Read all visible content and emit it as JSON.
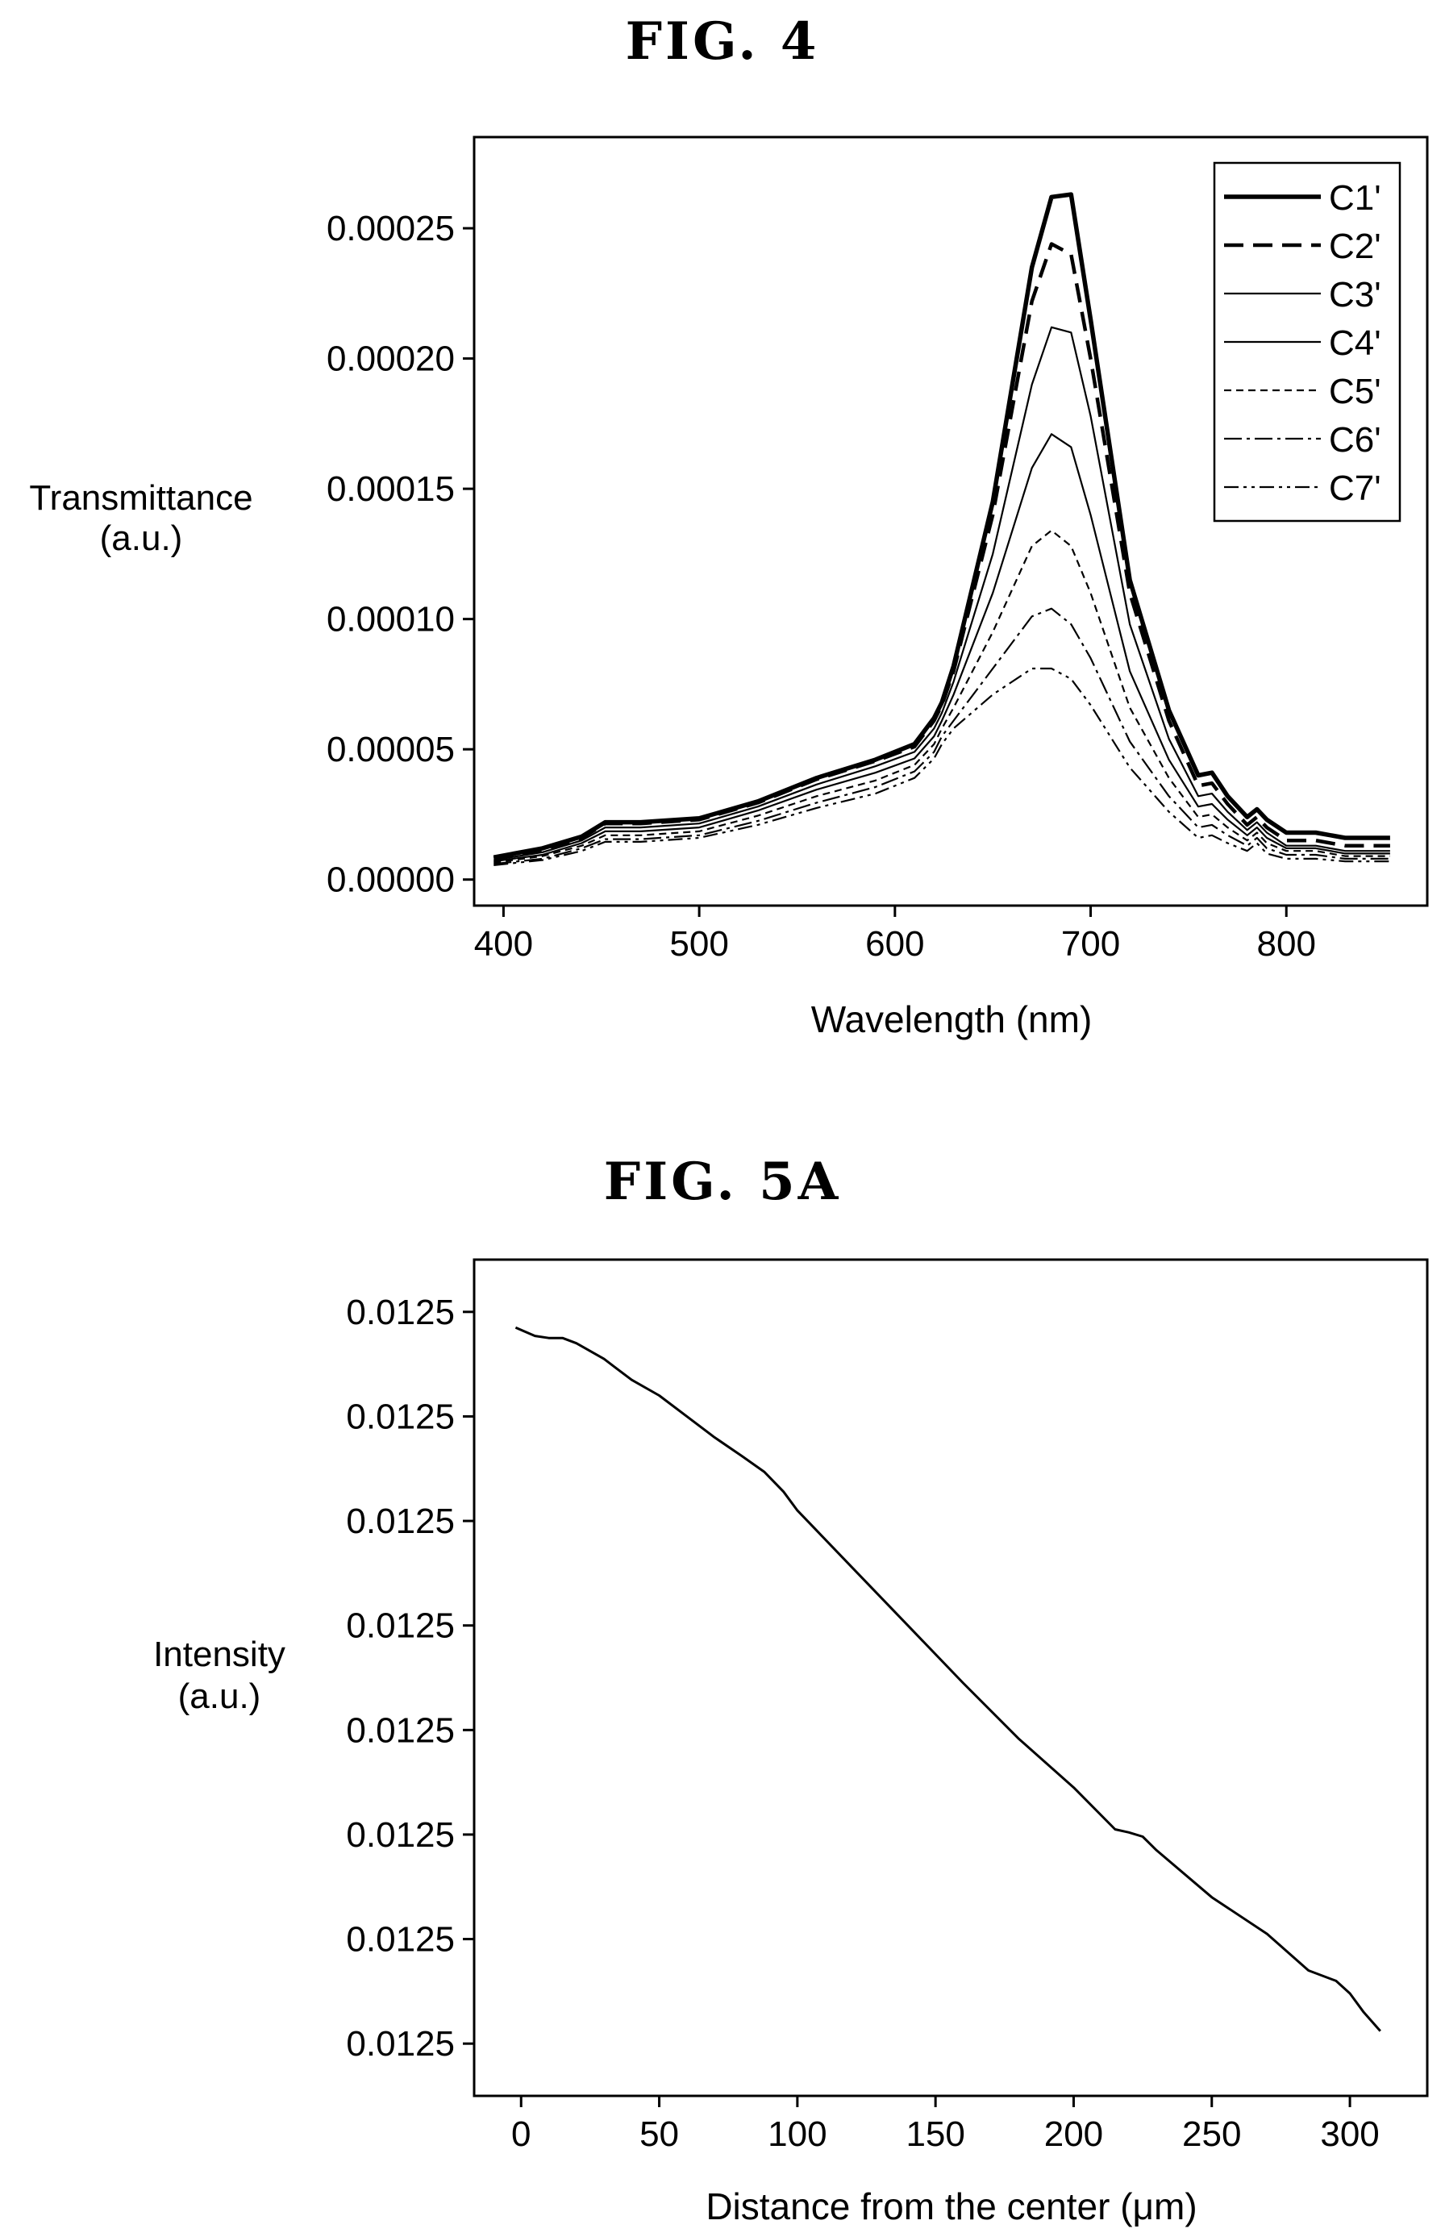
{
  "figures": {
    "fig4_title": "FIG. 4",
    "fig5a_title": "FIG. 5A"
  },
  "chart_data": [
    {
      "type": "line",
      "xlabel": "Wavelength (nm)",
      "ylabel_line1": "Transmittance",
      "ylabel_line2": "(a.u.)",
      "xlim": [
        385,
        872
      ],
      "ylim": [
        -1e-05,
        0.000285
      ],
      "xticks": [
        400,
        500,
        600,
        700,
        800
      ],
      "xtick_labels": [
        "400",
        "500",
        "600",
        "700",
        "800"
      ],
      "yticks": [
        0,
        5e-05,
        0.0001,
        0.00015,
        0.0002,
        0.00025
      ],
      "ytick_labels": [
        "0.00000",
        "0.00005",
        "0.00010",
        "0.00015",
        "0.00020",
        "0.00025"
      ],
      "legend_position": "top-right",
      "grid": false,
      "x": [
        395,
        420,
        440,
        452,
        470,
        500,
        530,
        560,
        590,
        610,
        620,
        624,
        630,
        650,
        670,
        680,
        690,
        700,
        720,
        740,
        755,
        762,
        770,
        780,
        785,
        790,
        800,
        815,
        830,
        853
      ],
      "series": [
        {
          "name": "C1'",
          "style": "solid-thick",
          "values": [
            8.5e-06,
            1.2e-05,
            1.65e-05,
            2.2e-05,
            2.2e-05,
            2.35e-05,
            3e-05,
            3.9e-05,
            4.6e-05,
            5.2e-05,
            6.2e-05,
            6.8e-05,
            8.2e-05,
            0.000145,
            0.000235,
            0.000262,
            0.000263,
            0.000215,
            0.000115,
            6.5e-05,
            4e-05,
            4.1e-05,
            3.2e-05,
            2.4e-05,
            2.7e-05,
            2.3e-05,
            1.8e-05,
            1.8e-05,
            1.6e-05,
            1.6e-05
          ]
        },
        {
          "name": "C2'",
          "style": "dashed-thick",
          "values": [
            8.2e-06,
            1.15e-05,
            1.6e-05,
            2.15e-05,
            2.15e-05,
            2.3e-05,
            2.95e-05,
            3.85e-05,
            4.55e-05,
            5.1e-05,
            6.1e-05,
            6.7e-05,
            8e-05,
            0.00014,
            0.000222,
            0.000244,
            0.00024,
            0.0002,
            0.00011,
            6.1e-05,
            3.6e-05,
            3.7e-05,
            2.9e-05,
            2.1e-05,
            2.4e-05,
            2e-05,
            1.5e-05,
            1.5e-05,
            1.3e-05,
            1.3e-05
          ]
        },
        {
          "name": "C3'",
          "style": "solid-thin",
          "values": [
            7.5e-06,
            1.05e-05,
            1.5e-05,
            2e-05,
            2e-05,
            2.15e-05,
            2.8e-05,
            3.65e-05,
            4.35e-05,
            4.9e-05,
            5.8e-05,
            6.4e-05,
            7.6e-05,
            0.000125,
            0.00019,
            0.000212,
            0.00021,
            0.000178,
            9.8e-05,
            5.4e-05,
            3.2e-05,
            3.3e-05,
            2.6e-05,
            1.9e-05,
            2.2e-05,
            1.8e-05,
            1.3e-05,
            1.3e-05,
            1.1e-05,
            1.1e-05
          ]
        },
        {
          "name": "C4'",
          "style": "solid-thin",
          "values": [
            7e-06,
            9.5e-06,
            1.4e-05,
            1.85e-05,
            1.85e-05,
            2e-05,
            2.65e-05,
            3.45e-05,
            4.1e-05,
            4.65e-05,
            5.5e-05,
            6.1e-05,
            7.1e-05,
            0.00011,
            0.000158,
            0.000171,
            0.000166,
            0.00014,
            8e-05,
            4.6e-05,
            2.8e-05,
            2.9e-05,
            2.3e-05,
            1.7e-05,
            2e-05,
            1.6e-05,
            1.2e-05,
            1.2e-05,
            1e-05,
            1e-05
          ]
        },
        {
          "name": "C5'",
          "style": "dashed-thin",
          "values": [
            6.5e-06,
            9e-06,
            1.3e-05,
            1.7e-05,
            1.7e-05,
            1.85e-05,
            2.45e-05,
            3.2e-05,
            3.8e-05,
            4.4e-05,
            5.2e-05,
            5.8e-05,
            6.6e-05,
            9.5e-05,
            0.000128,
            0.000134,
            0.000128,
            0.00011,
            6.6e-05,
            3.9e-05,
            2.4e-05,
            2.5e-05,
            2e-05,
            1.5e-05,
            1.8e-05,
            1.4e-05,
            1.1e-05,
            1.1e-05,
            9e-06,
            9e-06
          ]
        },
        {
          "name": "C6'",
          "style": "dashdot",
          "values": [
            6e-06,
            8e-06,
            1.2e-05,
            1.55e-05,
            1.55e-05,
            1.7e-05,
            2.25e-05,
            2.95e-05,
            3.55e-05,
            4.15e-05,
            4.9e-05,
            5.5e-05,
            6.1e-05,
            8.1e-05,
            0.000101,
            0.000104,
            9.8e-05,
            8.5e-05,
            5.3e-05,
            3.2e-05,
            2e-05,
            2.1e-05,
            1.7e-05,
            1.3e-05,
            1.6e-05,
            1.2e-05,
            9.5e-06,
            9.5e-06,
            8e-06,
            8e-06
          ]
        },
        {
          "name": "C7'",
          "style": "dashdotdot",
          "values": [
            5.5e-06,
            7.5e-06,
            1.1e-05,
            1.45e-05,
            1.45e-05,
            1.6e-05,
            2.1e-05,
            2.75e-05,
            3.3e-05,
            3.9e-05,
            4.65e-05,
            5.2e-05,
            5.8e-05,
            7.1e-05,
            8.1e-05,
            8.1e-05,
            7.7e-05,
            6.7e-05,
            4.3e-05,
            2.6e-05,
            1.6e-05,
            1.7e-05,
            1.4e-05,
            1.1e-05,
            1.4e-05,
            1e-05,
            8e-06,
            8e-06,
            7e-06,
            7e-06
          ]
        }
      ]
    },
    {
      "type": "line",
      "xlabel": "Distance from the center (μm)",
      "ylabel_line1": "Intensity",
      "ylabel_line2": "(a.u.)",
      "xlim": [
        -17,
        328
      ],
      "ylim": [
        0,
        8
      ],
      "xticks": [
        0,
        50,
        100,
        150,
        200,
        250,
        300
      ],
      "xtick_labels": [
        "0",
        "50",
        "100",
        "150",
        "200",
        "250",
        "300"
      ],
      "yticks": [
        0.5,
        1.5,
        2.5,
        3.5,
        4.5,
        5.5,
        6.5,
        7.5
      ],
      "ytick_labels": [
        "0.0125",
        "0.0125",
        "0.0125",
        "0.0125",
        "0.0125",
        "0.0125",
        "0.0125",
        "0.0125"
      ],
      "grid": false,
      "series": [
        {
          "x": [
            -2,
            5,
            10,
            15,
            20,
            30,
            40,
            50,
            60,
            70,
            80,
            88,
            95,
            100,
            120,
            140,
            160,
            180,
            200,
            215,
            220,
            225,
            230,
            250,
            270,
            285,
            295,
            300,
            305,
            311
          ],
          "values": [
            7.35,
            7.27,
            7.25,
            7.25,
            7.2,
            7.05,
            6.85,
            6.7,
            6.5,
            6.3,
            6.12,
            5.97,
            5.78,
            5.6,
            5.05,
            4.5,
            3.95,
            3.42,
            2.95,
            2.55,
            2.52,
            2.48,
            2.35,
            1.9,
            1.55,
            1.2,
            1.1,
            0.98,
            0.8,
            0.62
          ]
        }
      ]
    }
  ]
}
